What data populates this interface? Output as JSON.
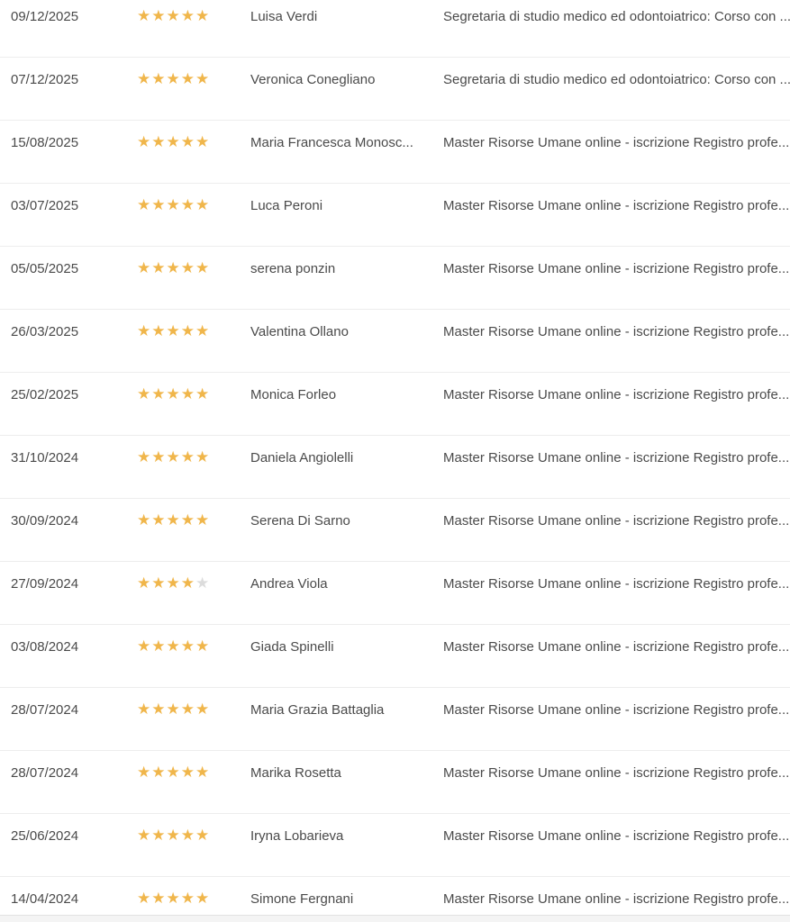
{
  "table": {
    "max_rating": 5,
    "star_colors": {
      "filled": "#f0b64b",
      "empty": "#dcdcdc"
    },
    "reviews": [
      {
        "date": "09/12/2025",
        "rating": 5,
        "name": "Luisa Verdi",
        "course": "Segretaria di studio medico ed odontoiatrico: Corso con ..."
      },
      {
        "date": "07/12/2025",
        "rating": 5,
        "name": "Veronica Conegliano",
        "course": "Segretaria di studio medico ed odontoiatrico: Corso con ..."
      },
      {
        "date": "15/08/2025",
        "rating": 5,
        "name": "Maria Francesca Monosc...",
        "course": "Master Risorse Umane online - iscrizione Registro profe..."
      },
      {
        "date": "03/07/2025",
        "rating": 5,
        "name": "Luca Peroni",
        "course": "Master Risorse Umane online - iscrizione Registro profe..."
      },
      {
        "date": "05/05/2025",
        "rating": 5,
        "name": "serena ponzin",
        "course": "Master Risorse Umane online - iscrizione Registro profe..."
      },
      {
        "date": "26/03/2025",
        "rating": 5,
        "name": "Valentina Ollano",
        "course": "Master Risorse Umane online - iscrizione Registro profe..."
      },
      {
        "date": "25/02/2025",
        "rating": 5,
        "name": "Monica Forleo",
        "course": "Master Risorse Umane online - iscrizione Registro profe..."
      },
      {
        "date": "31/10/2024",
        "rating": 5,
        "name": "Daniela Angiolelli",
        "course": "Master Risorse Umane online - iscrizione Registro profe..."
      },
      {
        "date": "30/09/2024",
        "rating": 5,
        "name": "Serena Di Sarno",
        "course": "Master Risorse Umane online - iscrizione Registro profe..."
      },
      {
        "date": "27/09/2024",
        "rating": 4,
        "name": "Andrea Viola",
        "course": "Master Risorse Umane online - iscrizione Registro profe..."
      },
      {
        "date": "03/08/2024",
        "rating": 5,
        "name": "Giada Spinelli",
        "course": "Master Risorse Umane online - iscrizione Registro profe..."
      },
      {
        "date": "28/07/2024",
        "rating": 5,
        "name": "Maria Grazia Battaglia",
        "course": "Master Risorse Umane online - iscrizione Registro profe..."
      },
      {
        "date": "28/07/2024",
        "rating": 5,
        "name": "Marika Rosetta",
        "course": "Master Risorse Umane online - iscrizione Registro profe..."
      },
      {
        "date": "25/06/2024",
        "rating": 5,
        "name": "Iryna Lobarieva",
        "course": "Master Risorse Umane online - iscrizione Registro profe..."
      },
      {
        "date": "14/04/2024",
        "rating": 5,
        "name": "Simone Fergnani",
        "course": "Master Risorse Umane online - iscrizione Registro profe..."
      }
    ]
  }
}
